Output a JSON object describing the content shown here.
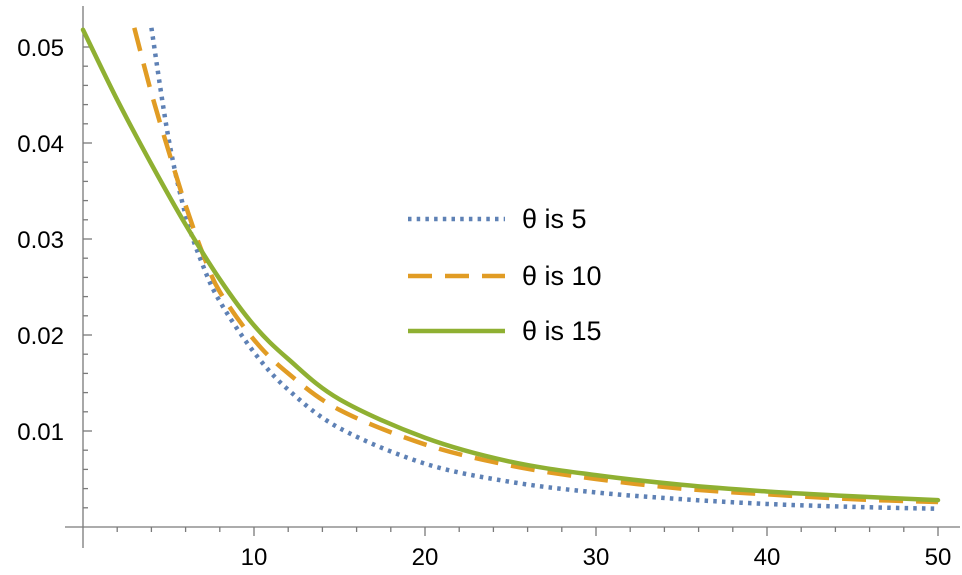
{
  "chart_data": {
    "type": "line",
    "title": "",
    "xlabel": "",
    "ylabel": "",
    "xlim": [
      0,
      51
    ],
    "ylim": [
      0,
      0.052
    ],
    "grid": false,
    "legend_position": "center-right",
    "x_ticks": [
      10,
      20,
      30,
      40,
      50
    ],
    "x_tick_labels": [
      "10",
      "20",
      "30",
      "40",
      "50"
    ],
    "y_ticks": [
      0.01,
      0.02,
      0.03,
      0.04,
      0.05
    ],
    "y_tick_labels": [
      "0.01",
      "0.02",
      "0.03",
      "0.04",
      "0.05"
    ],
    "series": [
      {
        "name": "θ is 5",
        "color": "#5e81b5",
        "style": "dotted",
        "x": [
          4,
          5,
          6,
          7,
          8,
          10,
          12,
          15,
          20,
          25,
          30,
          35,
          40,
          45,
          50
        ],
        "y": [
          0.052,
          0.0405,
          0.0325,
          0.0273,
          0.0235,
          0.0182,
          0.0143,
          0.0103,
          0.0066,
          0.0047,
          0.0036,
          0.0029,
          0.0024,
          0.0021,
          0.0019
        ]
      },
      {
        "name": "θ is 10",
        "color": "#e19c24",
        "style": "dashed",
        "x": [
          3,
          4,
          5,
          6,
          7,
          8,
          10,
          12,
          15,
          20,
          25,
          30,
          35,
          40,
          45,
          50
        ],
        "y": [
          0.052,
          0.0452,
          0.0392,
          0.0335,
          0.0285,
          0.0245,
          0.0195,
          0.016,
          0.0122,
          0.0086,
          0.0064,
          0.005,
          0.004,
          0.0034,
          0.0029,
          0.0026
        ]
      },
      {
        "name": "θ is 15",
        "color": "#8fb032",
        "style": "solid",
        "x": [
          0,
          2,
          4,
          6,
          8,
          10,
          12,
          15,
          20,
          25,
          30,
          35,
          40,
          45,
          50
        ],
        "y": [
          0.0518,
          0.0445,
          0.0378,
          0.0315,
          0.0258,
          0.021,
          0.0175,
          0.0133,
          0.0093,
          0.0068,
          0.0054,
          0.0044,
          0.0037,
          0.0032,
          0.0028
        ]
      }
    ]
  }
}
